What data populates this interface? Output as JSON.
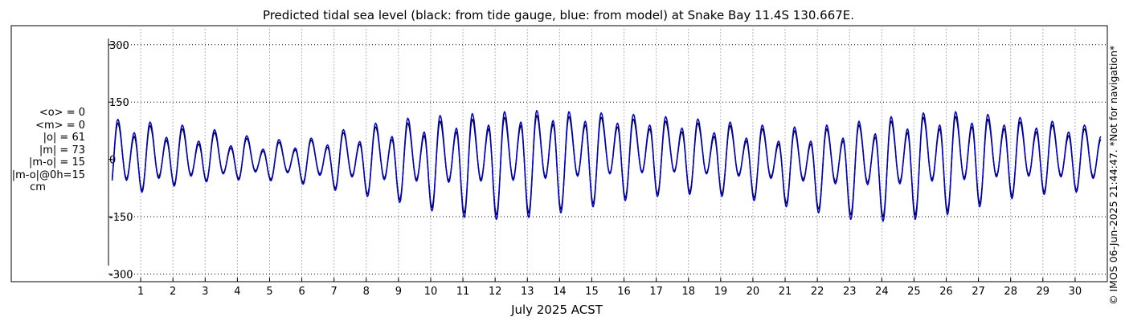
{
  "chart_data": {
    "type": "line",
    "title": "Predicted tidal sea level (black: from tide gauge, blue: from model) at Snake Bay 11.4S 130.667E.",
    "xlabel": "July 2025 ACST",
    "ylabel": "",
    "unit": "cm",
    "xlim": [
      0,
      31
    ],
    "ylim": [
      -320,
      350
    ],
    "yticks": [
      -300,
      -150,
      0,
      150,
      300
    ],
    "ytick_labels": [
      "-300",
      "-150",
      "0",
      "150",
      "300"
    ],
    "xticks": [
      1,
      2,
      3,
      4,
      5,
      6,
      7,
      8,
      9,
      10,
      11,
      12,
      13,
      14,
      15,
      16,
      17,
      18,
      19,
      20,
      21,
      22,
      23,
      24,
      25,
      26,
      27,
      28,
      29,
      30
    ],
    "xtick_labels": [
      "1",
      "2",
      "3",
      "4",
      "5",
      "6",
      "7",
      "8",
      "9",
      "10",
      "11",
      "12",
      "13",
      "14",
      "15",
      "16",
      "17",
      "18",
      "19",
      "20",
      "21",
      "22",
      "23",
      "24",
      "25",
      "26",
      "27",
      "28",
      "29",
      "30"
    ],
    "grid": true,
    "series": [
      {
        "name": "from tide gauge",
        "color": "#000000",
        "start_day": 0.1,
        "end_day": 30.95,
        "daily_max_1": [
          95,
          88,
          80,
          70,
          55,
          45,
          50,
          70,
          85,
          95,
          100,
          105,
          110,
          115,
          112,
          110,
          105,
          100,
          95,
          88,
          80,
          75,
          80,
          90,
          100,
          110,
          112,
          105,
          98,
          90,
          80
        ],
        "daily_max_2": [
          60,
          50,
          40,
          30,
          22,
          25,
          32,
          40,
          52,
          62,
          72,
          80,
          88,
          92,
          90,
          85,
          80,
          72,
          60,
          48,
          40,
          40,
          48,
          58,
          70,
          80,
          85,
          80,
          72,
          62,
          52
        ],
        "daily_min_1": [
          -90,
          -80,
          -65,
          -55,
          -50,
          -52,
          -60,
          -75,
          -90,
          -105,
          -125,
          -140,
          -145,
          -140,
          -130,
          -115,
          -100,
          -90,
          -85,
          -90,
          -100,
          -115,
          -130,
          -145,
          -150,
          -145,
          -135,
          -115,
          -95,
          -85,
          -80
        ],
        "daily_min_2": [
          -50,
          -45,
          -40,
          -35,
          -30,
          -32,
          -38,
          -42,
          -48,
          -52,
          -55,
          -52,
          -50,
          -45,
          -40,
          -35,
          -32,
          -30,
          -35,
          -40,
          -45,
          -52,
          -58,
          -60,
          -58,
          -52,
          -48,
          -42,
          -40,
          -42,
          -45
        ]
      },
      {
        "name": "from model",
        "color": "#0000cc",
        "start_day": 0.1,
        "end_day": 30.95,
        "daily_max_1": [
          105,
          98,
          90,
          78,
          62,
          52,
          56,
          78,
          95,
          108,
          115,
          120,
          125,
          128,
          125,
          122,
          118,
          112,
          106,
          98,
          90,
          85,
          90,
          100,
          112,
          122,
          125,
          118,
          110,
          100,
          90
        ],
        "daily_max_2": [
          70,
          58,
          48,
          36,
          27,
          30,
          38,
          47,
          60,
          72,
          82,
          90,
          98,
          102,
          100,
          95,
          90,
          82,
          70,
          56,
          48,
          48,
          56,
          67,
          80,
          90,
          95,
          90,
          82,
          72,
          60
        ],
        "daily_min_1": [
          -97,
          -86,
          -70,
          -59,
          -54,
          -56,
          -65,
          -81,
          -97,
          -113,
          -135,
          -152,
          -157,
          -152,
          -140,
          -124,
          -108,
          -97,
          -92,
          -97,
          -108,
          -124,
          -140,
          -157,
          -162,
          -157,
          -145,
          -124,
          -103,
          -92,
          -86
        ],
        "daily_min_2": [
          -55,
          -50,
          -44,
          -38,
          -33,
          -35,
          -42,
          -46,
          -53,
          -57,
          -60,
          -57,
          -55,
          -50,
          -44,
          -38,
          -35,
          -33,
          -38,
          -44,
          -50,
          -57,
          -64,
          -66,
          -64,
          -57,
          -53,
          -46,
          -44,
          -46,
          -50
        ]
      }
    ]
  },
  "stats": {
    "o_mean": "<o> = 0",
    "m_mean": "<m> = 0",
    "o_abs": "|o| = 61",
    "m_abs": "|m| = 73",
    "m_minus_o": "|m-o| = 15",
    "m_minus_o_0h": "|m-o|@0h=15",
    "unit": "cm"
  },
  "copyright": "© IMOS 06-Jun-2025 21:44:47.  *Not for navigation*"
}
